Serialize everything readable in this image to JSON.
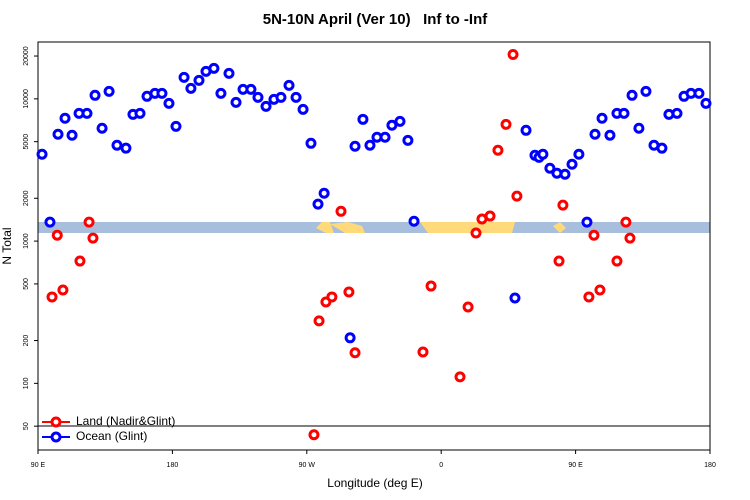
{
  "chart_data": {
    "type": "scatter",
    "title": "5N-10N April (Ver 10)   Inf to -Inf",
    "x_label": "Longitude (deg E)",
    "y_label": "N Total",
    "log_y": true,
    "legend": "bottom-left",
    "xlim": [
      90,
      540
    ],
    "ylim": [
      34,
      25100
    ],
    "xticks": [
      {
        "value": 90,
        "label": "90 E"
      },
      {
        "value": 180,
        "label": "180"
      },
      {
        "value": 270,
        "label": "90 W"
      },
      {
        "value": 360,
        "label": "0"
      },
      {
        "value": 450,
        "label": "90 E"
      },
      {
        "value": 540,
        "label": "180"
      }
    ],
    "yticks": [
      50,
      100,
      200,
      500,
      1000,
      2000,
      5000,
      10000,
      20000
    ],
    "series": [
      {
        "name": "Land (Nadir&Glint)",
        "color": "#ff0000",
        "x": [
          99.4,
          102.9,
          106.7,
          118.1,
          124.2,
          126.8,
          274.8,
          278.2,
          282.8,
          286.8,
          292.9,
          298.2,
          302.3,
          347.8,
          353.2,
          372.6,
          378.0,
          383.3,
          387.3,
          392.7,
          398.0,
          403.4,
          408.1,
          410.7,
          438.9,
          441.5,
          458.9,
          462.3,
          466.3,
          477.7,
          483.7,
          486.4
        ],
        "values": [
          405,
          1100,
          453,
          724,
          1360,
          1050,
          43.5,
          275,
          373,
          405,
          1620,
          439,
          164,
          166,
          483,
          111,
          344,
          1140,
          1430,
          1500,
          4350,
          6620,
          20500,
          2070,
          724,
          1790,
          405,
          1100,
          453,
          724,
          1360,
          1050
        ]
      },
      {
        "name": "Ocean (Glint)",
        "color": "#0000ff",
        "x": [
          92.7,
          98.0,
          103.4,
          108.1,
          112.8,
          117.5,
          122.8,
          128.2,
          132.9,
          137.6,
          142.9,
          148.9,
          153.6,
          158.3,
          163.0,
          168.3,
          173.0,
          177.7,
          182.4,
          187.8,
          192.4,
          197.8,
          202.5,
          207.8,
          212.5,
          217.9,
          222.6,
          227.3,
          232.6,
          237.3,
          242.7,
          248.0,
          252.7,
          258.1,
          262.8,
          267.5,
          272.8,
          277.5,
          281.6,
          299.0,
          302.3,
          307.6,
          312.3,
          317.0,
          322.4,
          327.0,
          332.4,
          337.7,
          341.8,
          409.4,
          416.8,
          422.8,
          425.5,
          428.1,
          432.8,
          437.5,
          442.9,
          447.6,
          452.2,
          457.6,
          463.0,
          467.7,
          473.0,
          477.7,
          482.4,
          487.8,
          492.4,
          497.1,
          502.5,
          507.8,
          512.5,
          517.9,
          522.6,
          527.3,
          532.6,
          537.3
        ],
        "values": [
          4080,
          1360,
          5640,
          7300,
          5550,
          7910,
          7910,
          10590,
          6210,
          11290,
          4720,
          4500,
          7780,
          7910,
          10420,
          10930,
          10930,
          9290,
          6410,
          14150,
          11850,
          13490,
          15600,
          16370,
          10930,
          15100,
          9450,
          11660,
          11660,
          10250,
          8850,
          9920,
          10250,
          12440,
          10250,
          8440,
          4870,
          1820,
          2170,
          209,
          4640,
          7180,
          4720,
          5370,
          5370,
          6520,
          6950,
          5110,
          1380,
          398,
          6010,
          4010,
          3880,
          4080,
          3250,
          3000,
          2950,
          3470,
          4080,
          1360,
          5640,
          7300,
          5550,
          7910,
          7910,
          10590,
          6210,
          11290,
          4720,
          4500,
          7780,
          7910,
          10420,
          10930,
          10930,
          9290
        ]
      }
    ]
  }
}
